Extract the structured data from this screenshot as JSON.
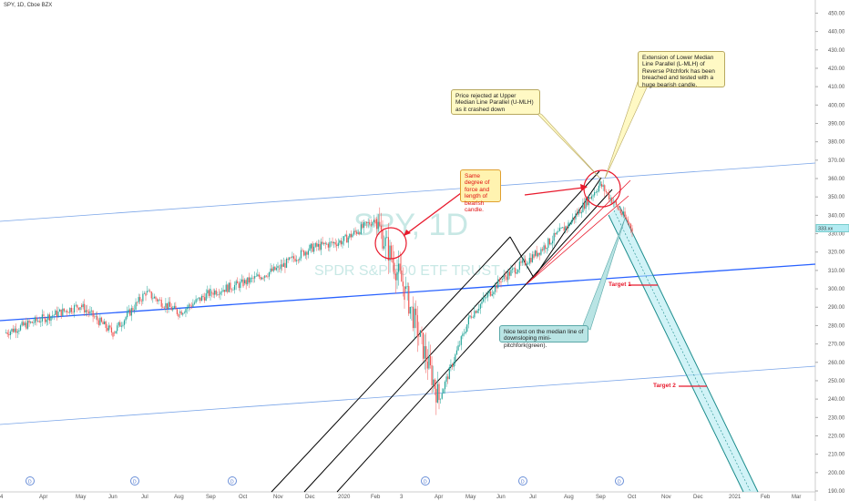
{
  "header": {
    "ticker": "SPY, 1D, Cboe BZX"
  },
  "watermark": {
    "symbol": "SPY, 1D",
    "name": "SPDR S&P 500 ETF TRUST"
  },
  "annotations": {
    "upper_median": "Price rejected at Upper Median Line Parallel (U-MLH) as it crashed  down",
    "lower_median": "Extension of Lower Median Line Parallel (L-MLH) of Reverse Pitchfork has been breached and tested with a huge bearish candle.",
    "same_force": "Same degree of force and length of bearish candle.",
    "median_test": "Nice test on the median line of downsloping mini-pitchfork(green).",
    "target1": "Target 1",
    "target2": "Target 2"
  },
  "price_label": "333.xx",
  "colors": {
    "up": "#26a69a",
    "down": "#ef5350",
    "blue_line": "#2962ff",
    "light_blue": "#7aa5e8",
    "red": "#e8192c",
    "teal_fill": "#b2ebf2",
    "teal_line": "#1b8c8c"
  },
  "chart_data": {
    "type": "candlestick",
    "title": "SPY, 1D, Cboe BZX",
    "y_axis": {
      "ticks": [
        190,
        200,
        210,
        220,
        230,
        240,
        250,
        260,
        270,
        280,
        290,
        300,
        310,
        320,
        330,
        340,
        350,
        360,
        370,
        380,
        390,
        400,
        410,
        420,
        430,
        440,
        450
      ],
      "ylim": [
        184,
        452
      ]
    },
    "x_axis": {
      "ticks": [
        "4",
        "Apr",
        "May",
        "Jun",
        "Jul",
        "Aug",
        "Sep",
        "Oct",
        "Nov",
        "Dec",
        "2020",
        "Feb",
        "3",
        "Apr",
        "May",
        "Jun",
        "Jul",
        "Aug",
        "Sep",
        "Oct",
        "Nov",
        "Dec",
        "2021",
        "Feb",
        "Mar"
      ]
    },
    "price_path": [
      {
        "t": "4",
        "close": 276
      },
      {
        "t": "Apr",
        "close": 284
      },
      {
        "t": "May",
        "close": 291
      },
      {
        "t": "Jun",
        "close": 276
      },
      {
        "t": "Jul",
        "close": 298
      },
      {
        "t": "Aug",
        "close": 287
      },
      {
        "t": "Sep",
        "close": 298
      },
      {
        "t": "Oct",
        "close": 303
      },
      {
        "t": "Nov",
        "close": 311
      },
      {
        "t": "Dec",
        "close": 322
      },
      {
        "t": "2020",
        "close": 326
      },
      {
        "t": "Feb",
        "close": 338
      },
      {
        "t": "3",
        "close": 300
      },
      {
        "t": "Apr",
        "close": 240
      },
      {
        "t": "May",
        "close": 285
      },
      {
        "t": "Jun",
        "close": 305
      },
      {
        "t": "Jul",
        "close": 318
      },
      {
        "t": "Aug",
        "close": 335
      },
      {
        "t": "Sep",
        "close": 357
      },
      {
        "t": "Oct",
        "close": 333
      }
    ],
    "last_price": 333,
    "targets": [
      {
        "name": "Target 1",
        "price": 302
      },
      {
        "name": "Target 2",
        "price": 247
      }
    ],
    "dividend_markers": [
      "D",
      "D",
      "D",
      "D",
      "D",
      "D"
    ]
  }
}
